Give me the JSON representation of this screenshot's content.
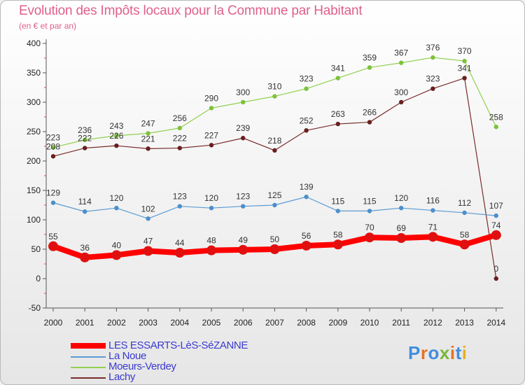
{
  "header": {
    "title": "Evolution des Impôts locaux pour la Commune par Habitant",
    "subtitle": "(en € et par an)"
  },
  "logo": {
    "text": "Proxiti",
    "letter_colors": [
      "#3f8ede",
      "#e8702a",
      "#3f8ede",
      "#7ab83a",
      "#e8702a",
      "#3f8ede",
      "#e8b020"
    ]
  },
  "chart_data": {
    "type": "line",
    "title": "Evolution des Impôts locaux pour la Commune par Habitant",
    "subtitle": "(en € et par an)",
    "x": [
      "2000",
      "2001",
      "2002",
      "2003",
      "2004",
      "2005",
      "2006",
      "2007",
      "2008",
      "2009",
      "2010",
      "2011",
      "2012",
      "2013",
      "2014"
    ],
    "ylim": [
      -50,
      400
    ],
    "yticks": [
      "-50",
      "0",
      "50",
      "100",
      "150",
      "200",
      "250",
      "300",
      "350",
      "400"
    ],
    "grid": false,
    "legend_position": "bottom-left",
    "series": [
      {
        "name": "LES ESSARTS-LèS-SéZANNE",
        "color": "#ff0000",
        "marker_color": "#e01010",
        "bold": true,
        "values": [
          55,
          36,
          40,
          47,
          44,
          48,
          49,
          50,
          56,
          58,
          70,
          69,
          71,
          58,
          74
        ],
        "labels": [
          "55",
          "36",
          "40",
          "47",
          "44",
          "48",
          "49",
          "50",
          "56",
          "58",
          "70",
          "69",
          "71",
          "58",
          "74"
        ]
      },
      {
        "name": "La Noue",
        "color": "#5b9bd5",
        "marker_color": "#4d8fcc",
        "bold": false,
        "values": [
          129,
          114,
          120,
          102,
          123,
          120,
          123,
          125,
          139,
          115,
          115,
          120,
          116,
          112,
          107
        ],
        "labels": [
          "129",
          "114",
          "120",
          "102",
          "123",
          "120",
          "123",
          "125",
          "139",
          "115",
          "115",
          "120",
          "116",
          "112",
          "107"
        ]
      },
      {
        "name": "Moeurs-Verdey",
        "color": "#92d050",
        "marker_color": "#7cc23a",
        "bold": false,
        "values": [
          223,
          236,
          243,
          247,
          256,
          290,
          300,
          310,
          323,
          341,
          359,
          367,
          376,
          370,
          258
        ],
        "labels": [
          "223",
          "236",
          "243",
          "247",
          "256",
          "290",
          "300",
          "310",
          "323",
          "341",
          "359",
          "367",
          "376",
          "370",
          "258"
        ]
      },
      {
        "name": "Lachy",
        "color": "#7b2c2c",
        "marker_color": "#6a1f1f",
        "bold": false,
        "values": [
          208,
          222,
          226,
          221,
          222,
          227,
          239,
          218,
          252,
          263,
          266,
          300,
          323,
          341,
          0
        ],
        "labels": [
          "208",
          "222",
          "226",
          "221",
          "222",
          "227",
          "239",
          "218",
          "252",
          "263",
          "266",
          "300",
          "323",
          "341",
          "0"
        ]
      }
    ]
  }
}
